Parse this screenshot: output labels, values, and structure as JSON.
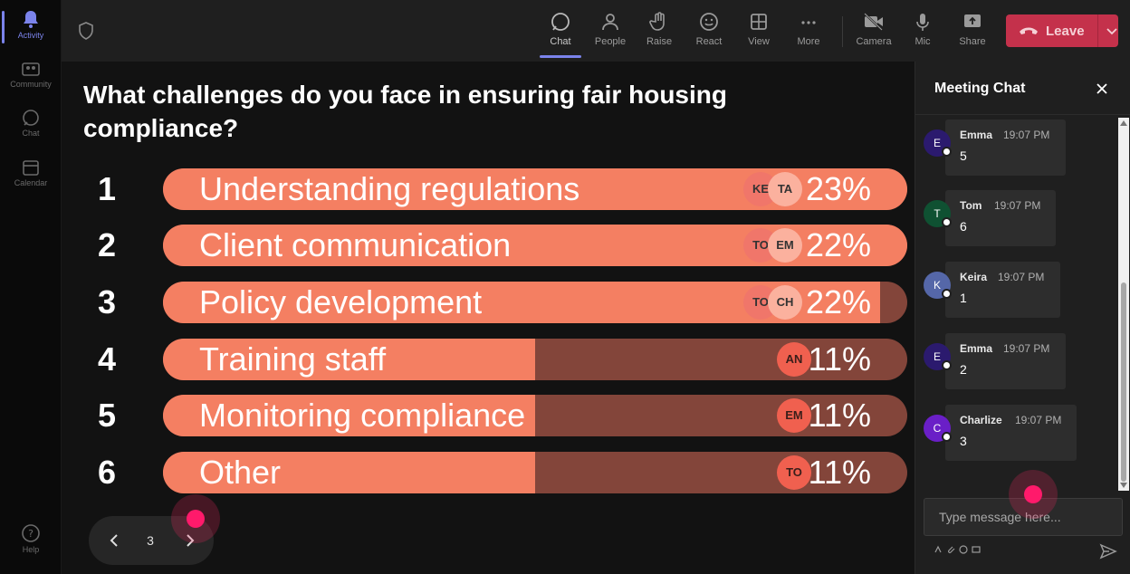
{
  "rail": {
    "items": [
      {
        "label": "Activity",
        "icon": "bell-icon"
      },
      {
        "label": "Community",
        "icon": "community-icon"
      },
      {
        "label": "Chat",
        "icon": "chat-icon"
      },
      {
        "label": "Calendar",
        "icon": "calendar-icon"
      },
      {
        "label": "Help",
        "icon": "help-icon"
      }
    ]
  },
  "toolbar": {
    "chat": "Chat",
    "people": "People",
    "raise": "Raise",
    "react": "React",
    "view": "View",
    "more": "More",
    "camera": "Camera",
    "mic": "Mic",
    "share": "Share",
    "leave": "Leave"
  },
  "poll": {
    "question": "What challenges do you face in ensuring fair housing compliance?",
    "options": [
      {
        "num": "1",
        "label": "Understanding regulations",
        "pct": "23%",
        "fill": 1.0,
        "avatars": [
          "KE",
          "TA"
        ]
      },
      {
        "num": "2",
        "label": "Client communication",
        "pct": "22%",
        "fill": 1.0,
        "avatars": [
          "TO",
          "EM"
        ]
      },
      {
        "num": "3",
        "label": "Policy development",
        "pct": "22%",
        "fill": 0.963,
        "avatars": [
          "TO",
          "CH"
        ]
      },
      {
        "num": "4",
        "label": "Training staff",
        "pct": "11%",
        "fill": 0.5,
        "avatars": [
          "AN"
        ]
      },
      {
        "num": "5",
        "label": "Monitoring compliance",
        "pct": "11%",
        "fill": 0.5,
        "avatars": [
          "EM"
        ]
      },
      {
        "num": "6",
        "label": "Other",
        "pct": "11%",
        "fill": 0.5,
        "avatars": [
          "TO"
        ]
      }
    ],
    "page": "3"
  },
  "chat": {
    "title": "Meeting Chat",
    "messages": [
      {
        "initial": "E",
        "name": "Emma",
        "time": "19:07 PM",
        "text": "5",
        "color": "#2b1a6e"
      },
      {
        "initial": "T",
        "name": "Tom",
        "time": "19:07 PM",
        "text": "6",
        "color": "#0f5132"
      },
      {
        "initial": "K",
        "name": "Keira",
        "time": "19:07 PM",
        "text": "1",
        "color": "#5567a8"
      },
      {
        "initial": "E",
        "name": "Emma",
        "time": "19:07 PM",
        "text": "2",
        "color": "#2b1a6e"
      },
      {
        "initial": "C",
        "name": "Charlize",
        "time": "19:07 PM",
        "text": "3",
        "color": "#6a1fc7"
      }
    ],
    "placeholder": "Type message here..."
  }
}
